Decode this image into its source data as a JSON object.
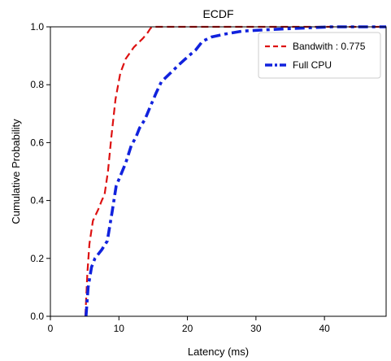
{
  "chart_data": {
    "type": "line",
    "title": "ECDF",
    "xlabel": "Latency (ms)",
    "ylabel": "Cumulative Probability",
    "xlim": [
      0,
      49
    ],
    "ylim": [
      0,
      1.0
    ],
    "xticks": [
      0,
      10,
      20,
      30,
      40
    ],
    "yticks": [
      0.0,
      0.2,
      0.4,
      0.6,
      0.8,
      1.0
    ],
    "xtick_labels": [
      "0",
      "10",
      "20",
      "30",
      "40"
    ],
    "ytick_labels": [
      "0.0",
      "0.2",
      "0.4",
      "0.6",
      "0.8",
      "1.0"
    ],
    "grid": false,
    "legend_position": "top-right",
    "series": [
      {
        "name": "Bandwith : 0.775",
        "color": "#dd1111",
        "style": "dashed",
        "points": [
          [
            5.1,
            0.0
          ],
          [
            5.4,
            0.15
          ],
          [
            5.7,
            0.25
          ],
          [
            6.2,
            0.33
          ],
          [
            7.0,
            0.37
          ],
          [
            7.5,
            0.4
          ],
          [
            7.9,
            0.42
          ],
          [
            8.4,
            0.5
          ],
          [
            8.9,
            0.62
          ],
          [
            9.5,
            0.75
          ],
          [
            10.2,
            0.84
          ],
          [
            11.0,
            0.89
          ],
          [
            12.2,
            0.93
          ],
          [
            13.5,
            0.96
          ],
          [
            14.2,
            0.98
          ],
          [
            14.6,
            0.995
          ],
          [
            15.0,
            1.0
          ],
          [
            49,
            1.0
          ]
        ]
      },
      {
        "name": "Full CPU",
        "color": "#1122dd",
        "style": "dashdot",
        "points": [
          [
            5.2,
            0.0
          ],
          [
            5.5,
            0.1
          ],
          [
            6.0,
            0.17
          ],
          [
            6.5,
            0.2
          ],
          [
            7.5,
            0.23
          ],
          [
            8.3,
            0.26
          ],
          [
            9.0,
            0.36
          ],
          [
            9.6,
            0.45
          ],
          [
            10.3,
            0.49
          ],
          [
            11.0,
            0.53
          ],
          [
            11.8,
            0.59
          ],
          [
            12.5,
            0.62
          ],
          [
            13.0,
            0.65
          ],
          [
            13.8,
            0.68
          ],
          [
            14.5,
            0.72
          ],
          [
            15.4,
            0.77
          ],
          [
            16.2,
            0.81
          ],
          [
            17.5,
            0.84
          ],
          [
            18.8,
            0.87
          ],
          [
            20.2,
            0.9
          ],
          [
            21.2,
            0.92
          ],
          [
            22.2,
            0.95
          ],
          [
            23.5,
            0.965
          ],
          [
            25.5,
            0.975
          ],
          [
            28.0,
            0.985
          ],
          [
            31.5,
            0.99
          ],
          [
            36.0,
            0.995
          ],
          [
            41.0,
            1.0
          ],
          [
            49,
            1.0
          ]
        ]
      }
    ]
  }
}
